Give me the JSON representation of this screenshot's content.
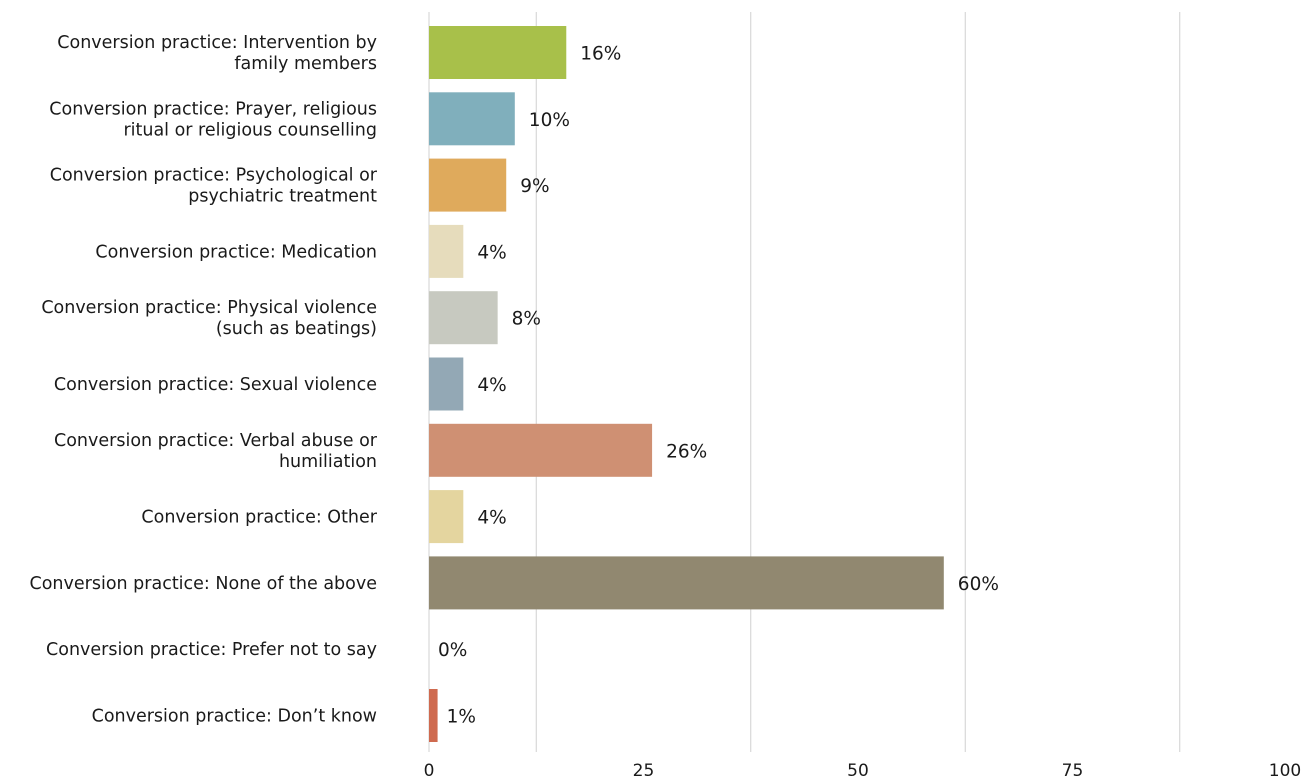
{
  "chart_data": {
    "type": "bar",
    "orientation": "horizontal",
    "title": "",
    "xlabel": "",
    "ylabel": "",
    "xlim": [
      0,
      100
    ],
    "grid": true,
    "x_ticks": [
      "0",
      "25",
      "50",
      "75",
      "100"
    ],
    "x_tick_values": [
      0,
      25,
      50,
      75,
      100
    ],
    "categories": [
      "Conversion practice: Intervention by family members",
      "Conversion practice: Prayer, religious ritual or religious counselling",
      "Conversion practice: Psychological or psychiatric treatment",
      "Conversion practice: Medication",
      "Conversion practice: Physical violence (such as beatings)",
      "Conversion practice: Sexual violence",
      "Conversion practice: Verbal abuse or humiliation",
      "Conversion practice: Other",
      "Conversion practice: None of the above",
      "Conversion practice: Prefer not to say",
      "Conversion practice: Don’t know"
    ],
    "category_lines": [
      [
        "Conversion practice: Intervention by",
        "family members"
      ],
      [
        "Conversion practice: Prayer, religious",
        "ritual or religious counselling"
      ],
      [
        "Conversion practice: Psychological or",
        "psychiatric treatment"
      ],
      [
        "Conversion practice: Medication"
      ],
      [
        "Conversion practice: Physical violence",
        "(such as beatings)"
      ],
      [
        "Conversion practice: Sexual violence"
      ],
      [
        "Conversion practice: Verbal abuse or",
        "humiliation"
      ],
      [
        "Conversion practice: Other"
      ],
      [
        "Conversion practice: None of the above"
      ],
      [
        "Conversion practice: Prefer not to say"
      ],
      [
        "Conversion practice: Don’t know"
      ]
    ],
    "values": [
      16,
      10,
      9,
      4,
      8,
      4,
      26,
      4,
      60,
      0,
      1
    ],
    "value_labels": [
      "16%",
      "10%",
      "9%",
      "4%",
      "8%",
      "4%",
      "26%",
      "4%",
      "60%",
      "0%",
      "1%"
    ],
    "colors": [
      "#a8c04a",
      "#80afbc",
      "#dfaa5c",
      "#e6dcbc",
      "#c7c9c0",
      "#93a8b5",
      "#cf9073",
      "#e4d59f",
      "#918870",
      "#c8c8c8",
      "#cf6a4f"
    ]
  }
}
